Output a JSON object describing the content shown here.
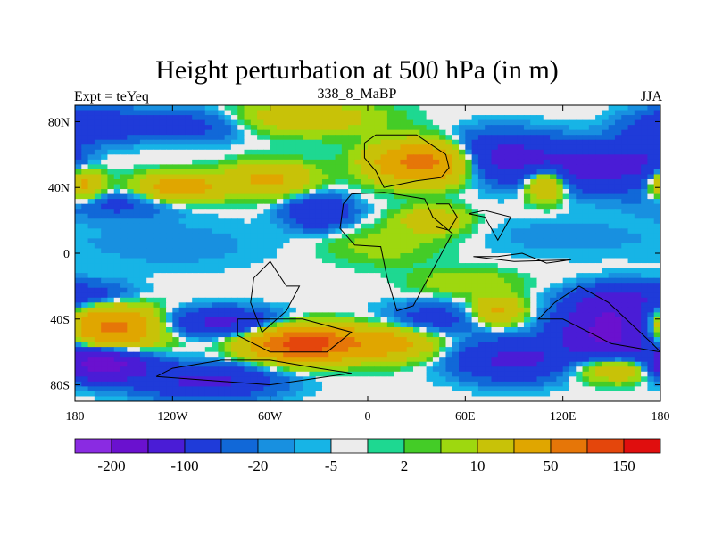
{
  "chart_data": {
    "type": "heatmap",
    "title": "Height perturbation at 500 hPa (in m)",
    "left_subtitle": "Expt = teYeq",
    "center_subtitle": "338_8_MaBP",
    "right_subtitle": "JJA",
    "x_range": [
      -180,
      180
    ],
    "y_range": [
      -90,
      90
    ],
    "x_ticks": [
      {
        "value": -180,
        "label": "180"
      },
      {
        "value": -120,
        "label": "120W"
      },
      {
        "value": -60,
        "label": "60W"
      },
      {
        "value": 0,
        "label": "0"
      },
      {
        "value": 60,
        "label": "60E"
      },
      {
        "value": 120,
        "label": "120E"
      },
      {
        "value": 180,
        "label": "180"
      }
    ],
    "y_ticks": [
      {
        "value": 80,
        "label": "80N"
      },
      {
        "value": 40,
        "label": "40N"
      },
      {
        "value": 0,
        "label": "0"
      },
      {
        "value": -40,
        "label": "40S"
      },
      {
        "value": -80,
        "label": "80S"
      }
    ],
    "contour_levels": [
      -200,
      -150,
      -100,
      -50,
      -20,
      -10,
      -5,
      -2,
      2,
      5,
      10,
      20,
      50,
      100,
      150,
      200
    ],
    "colorbar_labels": [
      {
        "level": -200,
        "label": "-200"
      },
      {
        "level": -100,
        "label": "-100"
      },
      {
        "level": -20,
        "label": "-20"
      },
      {
        "level": -5,
        "label": "-5"
      },
      {
        "level": 2,
        "label": "2"
      },
      {
        "level": 10,
        "label": "10"
      },
      {
        "level": 50,
        "label": "50"
      },
      {
        "level": 150,
        "label": "150"
      }
    ],
    "colors": [
      "#8a2be2",
      "#6a11cf",
      "#4a1cd6",
      "#1f3bd9",
      "#1168d8",
      "#1890e0",
      "#17b4e6",
      "#ececec",
      "#1ed891",
      "#44cc27",
      "#9ed80f",
      "#c8c208",
      "#e0a600",
      "#e67608",
      "#e4460c",
      "#e00e0e"
    ],
    "field_features": [
      {
        "lon": -170,
        "lat": 78,
        "value": -40,
        "spread_lon": 28,
        "spread_lat": 10
      },
      {
        "lon": -110,
        "lat": 78,
        "value": -30,
        "spread_lon": 40,
        "spread_lat": 10
      },
      {
        "lon": -40,
        "lat": 82,
        "value": 40,
        "spread_lon": 45,
        "spread_lat": 10
      },
      {
        "lon": 35,
        "lat": 55,
        "value": 130,
        "spread_lon": 30,
        "spread_lat": 12
      },
      {
        "lon": 80,
        "lat": 58,
        "value": -70,
        "spread_lon": 35,
        "spread_lat": 14
      },
      {
        "lon": 135,
        "lat": 52,
        "value": -60,
        "spread_lon": 30,
        "spread_lat": 14
      },
      {
        "lon": 110,
        "lat": 42,
        "value": 70,
        "spread_lon": 12,
        "spread_lat": 10
      },
      {
        "lon": 168,
        "lat": 56,
        "value": -40,
        "spread_lon": 18,
        "spread_lat": 16
      },
      {
        "lon": -175,
        "lat": 42,
        "value": 70,
        "spread_lon": 12,
        "spread_lat": 9
      },
      {
        "lon": -115,
        "lat": 40,
        "value": 80,
        "spread_lon": 25,
        "spread_lat": 8
      },
      {
        "lon": -60,
        "lat": 45,
        "value": 60,
        "spread_lon": 25,
        "spread_lat": 10
      },
      {
        "lon": -152,
        "lat": 30,
        "value": -25,
        "spread_lon": 35,
        "spread_lat": 9
      },
      {
        "lon": -30,
        "lat": 25,
        "value": -50,
        "spread_lon": 20,
        "spread_lat": 10
      },
      {
        "lon": 40,
        "lat": 20,
        "value": 40,
        "spread_lon": 20,
        "spread_lat": 8
      },
      {
        "lon": 10,
        "lat": 5,
        "value": 15,
        "spread_lon": 35,
        "spread_lat": 12
      },
      {
        "lon": 120,
        "lat": 10,
        "value": -8,
        "spread_lon": 50,
        "spread_lat": 12
      },
      {
        "lon": -120,
        "lat": 5,
        "value": -8,
        "spread_lon": 60,
        "spread_lat": 15
      },
      {
        "lon": 60,
        "lat": -18,
        "value": 20,
        "spread_lon": 30,
        "spread_lat": 8
      },
      {
        "lon": -160,
        "lat": -45,
        "value": 120,
        "spread_lon": 30,
        "spread_lat": 12
      },
      {
        "lon": -90,
        "lat": -42,
        "value": -60,
        "spread_lon": 35,
        "spread_lat": 8
      },
      {
        "lon": -40,
        "lat": -55,
        "value": 180,
        "spread_lon": 30,
        "spread_lat": 10
      },
      {
        "lon": 10,
        "lat": -55,
        "value": 70,
        "spread_lon": 30,
        "spread_lat": 10
      },
      {
        "lon": 40,
        "lat": -40,
        "value": -30,
        "spread_lon": 30,
        "spread_lat": 10
      },
      {
        "lon": 80,
        "lat": -35,
        "value": 60,
        "spread_lon": 15,
        "spread_lat": 8
      },
      {
        "lon": 90,
        "lat": -65,
        "value": -60,
        "spread_lon": 35,
        "spread_lat": 12
      },
      {
        "lon": 150,
        "lat": -48,
        "value": -120,
        "spread_lon": 30,
        "spread_lat": 15
      },
      {
        "lon": 150,
        "lat": -30,
        "value": -60,
        "spread_lon": 25,
        "spread_lat": 10
      },
      {
        "lon": 160,
        "lat": -70,
        "value": 60,
        "spread_lon": 30,
        "spread_lat": 8
      },
      {
        "lon": -165,
        "lat": -68,
        "value": -150,
        "spread_lon": 25,
        "spread_lat": 9
      },
      {
        "lon": -100,
        "lat": -78,
        "value": -60,
        "spread_lon": 40,
        "spread_lat": 10
      },
      {
        "lon": -170,
        "lat": -25,
        "value": -30,
        "spread_lon": 25,
        "spread_lat": 8
      }
    ],
    "continent_outlines": [
      [
        [
          -2,
          67
        ],
        [
          5,
          72
        ],
        [
          30,
          72
        ],
        [
          48,
          60
        ],
        [
          50,
          52
        ],
        [
          45,
          46
        ],
        [
          30,
          44
        ],
        [
          10,
          40
        ],
        [
          5,
          50
        ],
        [
          -2,
          58
        ],
        [
          -2,
          67
        ]
      ],
      [
        [
          -15,
          30
        ],
        [
          -10,
          36
        ],
        [
          10,
          37
        ],
        [
          35,
          33
        ],
        [
          40,
          22
        ],
        [
          52,
          12
        ],
        [
          40,
          -10
        ],
        [
          28,
          -32
        ],
        [
          18,
          -35
        ],
        [
          12,
          -15
        ],
        [
          8,
          4
        ],
        [
          -8,
          5
        ],
        [
          -17,
          15
        ],
        [
          -15,
          30
        ]
      ],
      [
        [
          42,
          30
        ],
        [
          50,
          30
        ],
        [
          55,
          22
        ],
        [
          50,
          14
        ],
        [
          42,
          16
        ],
        [
          42,
          30
        ]
      ],
      [
        [
          62,
          24
        ],
        [
          72,
          22
        ],
        [
          80,
          8
        ],
        [
          88,
          22
        ],
        [
          72,
          26
        ],
        [
          62,
          24
        ]
      ],
      [
        [
          65,
          -2
        ],
        [
          80,
          -2
        ],
        [
          95,
          0
        ],
        [
          110,
          -6
        ],
        [
          125,
          -4
        ],
        [
          90,
          -5
        ],
        [
          65,
          -2
        ]
      ],
      [
        [
          -70,
          -15
        ],
        [
          -60,
          -5
        ],
        [
          -50,
          -20
        ],
        [
          -42,
          -20
        ],
        [
          -50,
          -35
        ],
        [
          -65,
          -48
        ],
        [
          -72,
          -30
        ],
        [
          -70,
          -15
        ]
      ],
      [
        [
          -80,
          -40
        ],
        [
          -40,
          -40
        ],
        [
          -10,
          -48
        ],
        [
          -25,
          -60
        ],
        [
          -60,
          -60
        ],
        [
          -80,
          -50
        ],
        [
          -80,
          -40
        ]
      ],
      [
        [
          -130,
          -75
        ],
        [
          -120,
          -70
        ],
        [
          -90,
          -65
        ],
        [
          -60,
          -65
        ],
        [
          -30,
          -70
        ],
        [
          -10,
          -73
        ],
        [
          -60,
          -80
        ],
        [
          -130,
          -75
        ]
      ],
      [
        [
          115,
          -30
        ],
        [
          130,
          -20
        ],
        [
          148,
          -30
        ],
        [
          175,
          -55
        ],
        [
          180,
          -60
        ],
        [
          150,
          -55
        ],
        [
          120,
          -40
        ],
        [
          105,
          -40
        ],
        [
          115,
          -30
        ]
      ]
    ]
  }
}
